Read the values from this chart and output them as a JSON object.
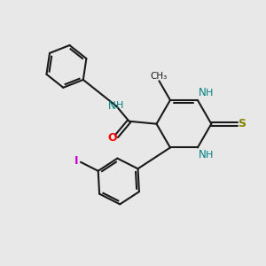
{
  "background_color": "#e8e8e8",
  "bond_color": "#1a1a1a",
  "N_color": "#008080",
  "O_color": "#ff0000",
  "S_color": "#808000",
  "I_color": "#cc00cc",
  "figsize": [
    3.0,
    3.0
  ],
  "dpi": 100,
  "xlim": [
    0,
    10
  ],
  "ylim": [
    0,
    10
  ]
}
